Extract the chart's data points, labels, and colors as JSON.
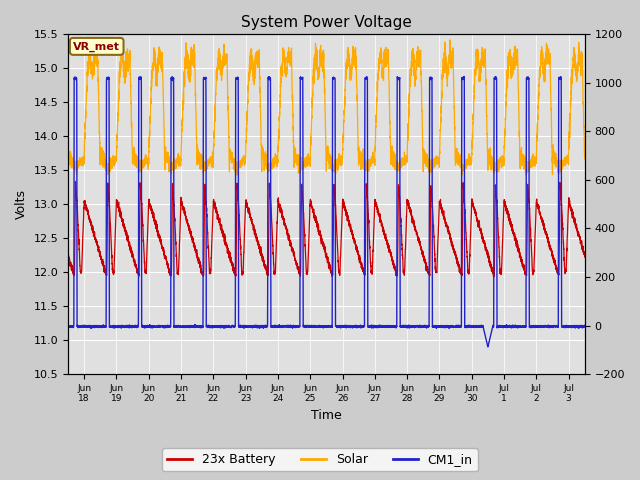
{
  "title": "System Power Voltage",
  "xlabel": "Time",
  "ylabel_left": "Volts",
  "ylim_left": [
    10.5,
    15.5
  ],
  "ylim_right": [
    -200,
    1200
  ],
  "yticks_left": [
    10.5,
    11.0,
    11.5,
    12.0,
    12.5,
    13.0,
    13.5,
    14.0,
    14.5,
    15.0,
    15.5
  ],
  "yticks_right": [
    -200,
    0,
    200,
    400,
    600,
    800,
    1000,
    1200
  ],
  "xtick_labels": [
    "Jun 18",
    "Jun 19",
    "Jun 20",
    "Jun 21",
    "Jun 22",
    "Jun 23",
    "Jun 24",
    "Jun 25",
    "Jun 26",
    "Jun 27",
    "Jun 28",
    "Jun 29",
    "Jun 30",
    "Jul 1",
    "Jul 2",
    "Jul 3"
  ],
  "legend_labels": [
    "23x Battery",
    "Solar",
    "CM1_in"
  ],
  "legend_colors": [
    "#cc0000",
    "#ffaa00",
    "#2222cc"
  ],
  "vr_met_label": "VR_met",
  "background_color": "#cccccc",
  "plot_bg_color": "#e0e0e0",
  "grid_color": "#ffffff",
  "figsize": [
    6.4,
    4.8
  ],
  "dpi": 100
}
